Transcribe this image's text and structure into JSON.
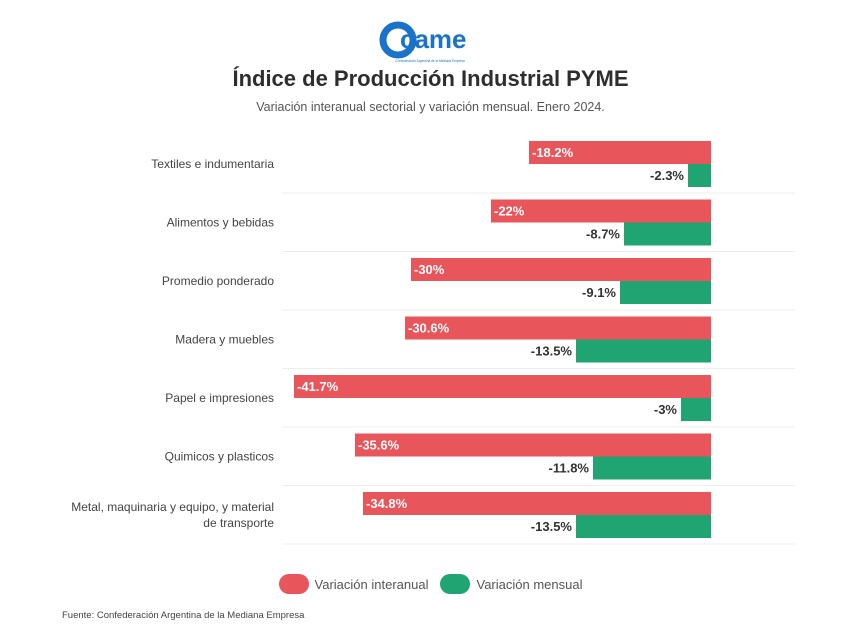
{
  "brand": {
    "logo_text": "came",
    "logo_tagline": "Confederación Argentina de la Mediana Empresa"
  },
  "header": {
    "title": "Índice de Producción Industrial PYME",
    "subtitle": "Variación interanual sectorial y variación mensual. Enero 2024."
  },
  "colors": {
    "interanual": "#e8555b",
    "mensual": "#20a572",
    "logo_blue": "#1a73c9"
  },
  "legend": {
    "interanual_label": "Variación interanual",
    "mensual_label": "Variación mensual"
  },
  "source": "Fuente: Confederación Argentina de la Mediana Empresa",
  "chart_data": {
    "type": "bar",
    "orientation": "horizontal",
    "categories": [
      [
        "Textiles e indumentaria"
      ],
      [
        "Alimentos y bebidas"
      ],
      [
        "Promedio ponderado"
      ],
      [
        "Madera y muebles"
      ],
      [
        "Papel e impresiones"
      ],
      [
        "Quimicos y plasticos"
      ],
      [
        "Metal, maquinaria y equipo, y material",
        "de transporte"
      ]
    ],
    "series": [
      {
        "name": "Variación interanual",
        "values": [
          -18.2,
          -22,
          -30,
          -30.6,
          -41.7,
          -35.6,
          -34.8
        ],
        "labels": [
          "-18.2%",
          "-22%",
          "-30%",
          "-30.6%",
          "-41.7%",
          "-35.6%",
          "-34.8%"
        ]
      },
      {
        "name": "Variación mensual",
        "values": [
          -2.3,
          -8.7,
          -9.1,
          -13.5,
          -3,
          -11.8,
          -13.5
        ],
        "labels": [
          "-2.3%",
          "-8.7%",
          "-9.1%",
          "-13.5%",
          "-3%",
          "-11.8%",
          "-13.5%"
        ]
      }
    ],
    "legend_position": "bottom",
    "grid": true,
    "xlim": [
      -41.7,
      0
    ]
  }
}
